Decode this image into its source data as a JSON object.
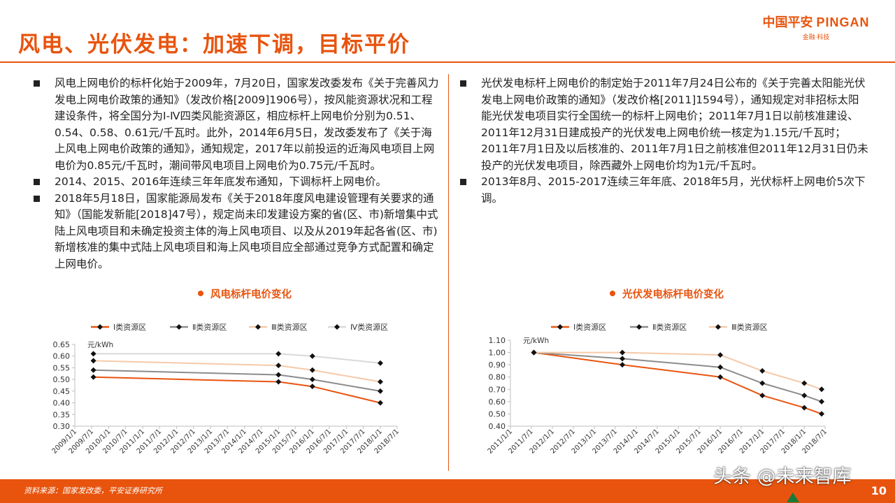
{
  "header": {
    "title": "风电、光伏发电：加速下调，目标平价",
    "logo_text": "中国平安",
    "logo_brand_en": "PINGAN",
    "logo_sub": "金融·科技"
  },
  "left_bullets": [
    "风电上网电价的标杆化始于2009年，7月20日，国家发改委发布《关于完善风力发电上网电价政策的通知》（发改价格[2009]1906号），按风能资源状况和工程建设条件，将全国分为Ⅰ-Ⅳ四类风能资源区，相应标杆上网电价分别为0.51、0.54、0.58、0.61元/千瓦时。此外，2014年6月5日，发改委发布了《关于海上风电上网电价政策的通知》，通知规定，2017年以前投运的近海风电项目上网电价为0.85元/千瓦时，潮间带风电项目上网电价为0.75元/千瓦时。",
    "2014、2015、2016年连续三年年底发布通知，下调标杆上网电价。",
    "2018年5月18日，国家能源局发布《关于2018年度风电建设管理有关要求的通知》（国能发新能[2018]47号），规定尚未印发建设方案的省(区、市)新增集中式陆上风电项目和未确定投资主体的海上风电项目、以及从2019年起各省(区、市)新增核准的集中式陆上风电项目和海上风电项目应全部通过竞争方式配置和确定上网电价。"
  ],
  "right_bullets": [
    "光伏发电标杆上网电价的制定始于2011年7月24日公布的《关于完善太阳能光伏发电上网电价政策的通知》（发改价格[2011]1594号），通知规定对非招标太阳能光伏发电项目实行全国统一的标杆上网电价；2011年7月1日以前核准建设、2011年12月31日建成投产的光伏发电上网电价统一核定为1.15元/千瓦时；2011年7月1日及以后核准的、2011年7月1日之前核准但2011年12月31日仍未投产的光伏发电项目，除西藏外上网电价均为1元/千瓦时。",
    "2013年8月、2015-2017连续三年年底、2018年5月，光伏标杆上网电价5次下调。"
  ],
  "footer": {
    "source": "资料来源：国家发改委，平安证券研究所",
    "page": "10",
    "watermark": "头条 @未来智库"
  },
  "chart_data": [
    {
      "type": "line",
      "title": "风电标杆电价变化",
      "unit_label": "元/kWh",
      "x_ticks": [
        "2009/1/1",
        "2009/7/1",
        "2010/1/1",
        "2010/7/1",
        "2011/1/1",
        "2011/7/1",
        "2012/1/1",
        "2012/7/1",
        "2013/1/1",
        "2013/7/1",
        "2014/1/1",
        "2014/7/1",
        "2015/1/1",
        "2015/7/1",
        "2016/1/1",
        "2016/7/1",
        "2017/1/1",
        "2017/7/1",
        "2018/1/1",
        "2018/7/1"
      ],
      "y_ticks": [
        "0.65",
        "0.60",
        "0.55",
        "0.50",
        "0.45",
        "0.40",
        "0.35",
        "0.30"
      ],
      "ylim": [
        0.3,
        0.65
      ],
      "series": [
        {
          "name": "Ⅰ类资源区",
          "color": "#e8540e",
          "points": [
            [
              "2009/7/20",
              0.51
            ],
            [
              "2015/1/1",
              0.49
            ],
            [
              "2016/1/1",
              0.47
            ],
            [
              "2018/1/1",
              0.4
            ]
          ]
        },
        {
          "name": "Ⅱ类资源区",
          "color": "#8c8c8c",
          "points": [
            [
              "2009/7/20",
              0.54
            ],
            [
              "2015/1/1",
              0.52
            ],
            [
              "2016/1/1",
              0.5
            ],
            [
              "2018/1/1",
              0.45
            ]
          ]
        },
        {
          "name": "Ⅲ类资源区",
          "color": "#f6c9a8",
          "points": [
            [
              "2009/7/20",
              0.58
            ],
            [
              "2015/1/1",
              0.56
            ],
            [
              "2016/1/1",
              0.54
            ],
            [
              "2018/1/1",
              0.49
            ]
          ]
        },
        {
          "name": "Ⅳ类资源区",
          "color": "#d9d9d9",
          "points": [
            [
              "2009/7/20",
              0.61
            ],
            [
              "2015/1/1",
              0.61
            ],
            [
              "2016/1/1",
              0.6
            ],
            [
              "2018/1/1",
              0.57
            ]
          ]
        }
      ],
      "legend_position": "top"
    },
    {
      "type": "line",
      "title": "光伏发电标杆电价变化",
      "unit_label": "元/kWh",
      "x_ticks": [
        "2011/1/1",
        "2011/7/1",
        "2012/1/1",
        "2012/7/1",
        "2013/1/1",
        "2013/7/1",
        "2014/1/1",
        "2014/7/1",
        "2015/1/1",
        "2015/7/1",
        "2016/1/1",
        "2016/7/1",
        "2017/1/1",
        "2017/7/1",
        "2018/1/1",
        "2018/7/1"
      ],
      "y_ticks": [
        "1.10",
        "1.00",
        "0.90",
        "0.80",
        "0.70",
        "0.60",
        "0.50",
        "0.40"
      ],
      "ylim": [
        0.4,
        1.1
      ],
      "series": [
        {
          "name": "Ⅰ类资源区",
          "color": "#e8540e",
          "points": [
            [
              "2011/7/24",
              1.0
            ],
            [
              "2013/9/1",
              0.9
            ],
            [
              "2016/1/1",
              0.8
            ],
            [
              "2017/1/1",
              0.65
            ],
            [
              "2018/1/1",
              0.55
            ],
            [
              "2018/6/1",
              0.5
            ]
          ]
        },
        {
          "name": "Ⅱ类资源区",
          "color": "#8c8c8c",
          "points": [
            [
              "2011/7/24",
              1.0
            ],
            [
              "2013/9/1",
              0.95
            ],
            [
              "2016/1/1",
              0.88
            ],
            [
              "2017/1/1",
              0.75
            ],
            [
              "2018/1/1",
              0.65
            ],
            [
              "2018/6/1",
              0.6
            ]
          ]
        },
        {
          "name": "Ⅲ类资源区",
          "color": "#f6c9a8",
          "points": [
            [
              "2011/7/24",
              1.0
            ],
            [
              "2013/9/1",
              1.0
            ],
            [
              "2016/1/1",
              0.98
            ],
            [
              "2017/1/1",
              0.85
            ],
            [
              "2018/1/1",
              0.75
            ],
            [
              "2018/6/1",
              0.7
            ]
          ]
        }
      ],
      "legend_position": "top"
    }
  ]
}
